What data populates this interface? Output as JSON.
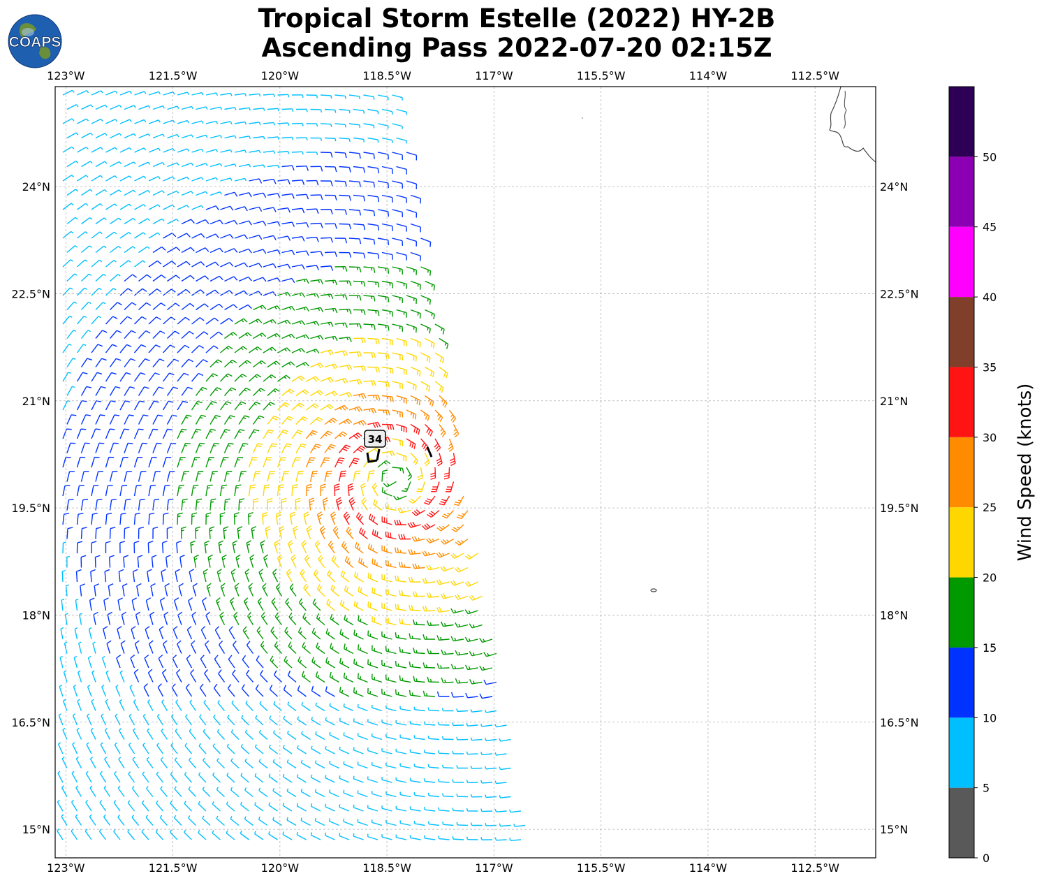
{
  "title": {
    "line1": "Tropical Storm Estelle (2022) HY-2B",
    "line2": "Ascending Pass 2022-07-20 02:15Z"
  },
  "logo": {
    "text": "COAPS",
    "icon": "globe-logo-icon"
  },
  "map": {
    "lon_ticks": [
      "123°W",
      "121.5°W",
      "120°W",
      "118.5°W",
      "117°W",
      "115.5°W",
      "114°W",
      "112.5°W"
    ],
    "lat_ticks": [
      "24°N",
      "22.5°N",
      "21°N",
      "19.5°N",
      "18°N",
      "16.5°N",
      "15°N"
    ],
    "lon_range": [
      -123.15,
      -111.65
    ],
    "lat_range": [
      14.6,
      25.4
    ],
    "grid": true,
    "max_wind_label": "34",
    "storm_center": {
      "lon": -118.4,
      "lat": 19.9
    }
  },
  "colorbar": {
    "label": "Wind Speed (knots)",
    "ticks": [
      "0",
      "5",
      "10",
      "15",
      "20",
      "25",
      "30",
      "35",
      "40",
      "45",
      "50"
    ],
    "colors": [
      "#595959",
      "#00bfff",
      "#0033ff",
      "#009900",
      "#ffd700",
      "#ff8c00",
      "#ff1414",
      "#7f3f2a",
      "#ff00ff",
      "#8c00b3",
      "#2d0055"
    ]
  }
}
